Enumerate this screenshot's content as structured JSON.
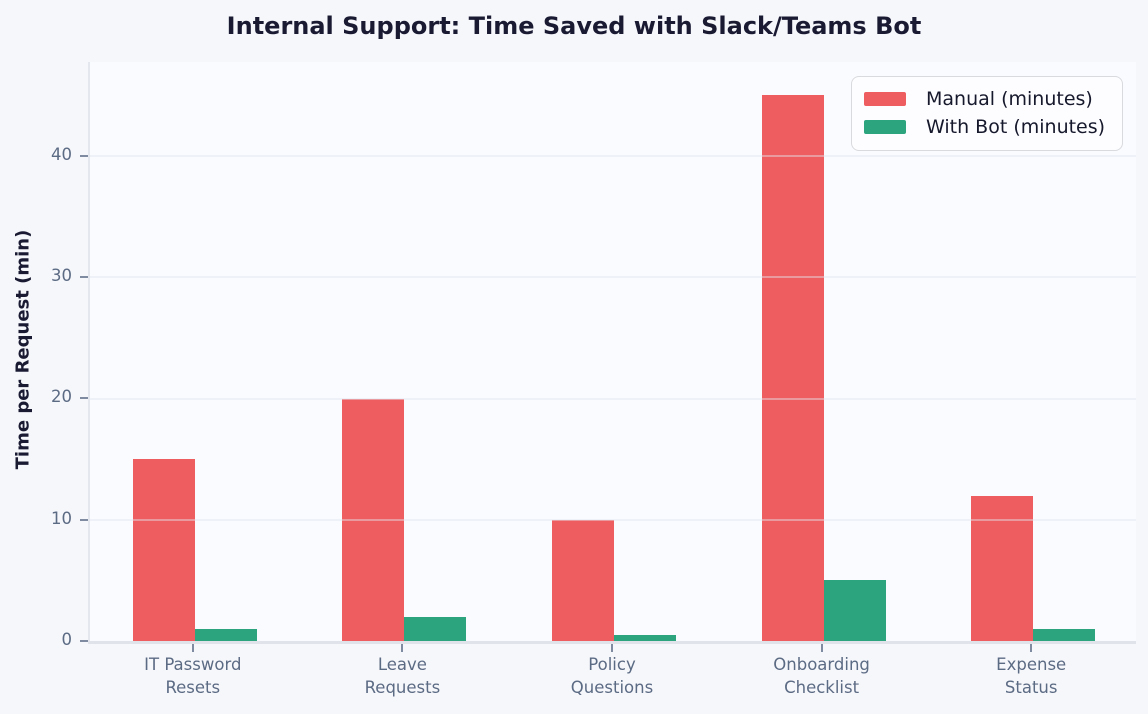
{
  "chart_data": {
    "type": "bar",
    "title": "Internal Support: Time Saved with Slack/Teams Bot",
    "ylabel": "Time per Request (min)",
    "xlabel": "",
    "categories": [
      "IT Password\nResets",
      "Leave\nRequests",
      "Policy\nQuestions",
      "Onboarding\nChecklist",
      "Expense\nStatus"
    ],
    "series": [
      {
        "name": "Manual (minutes)",
        "color": "#ee5d60",
        "values": [
          15,
          20,
          10,
          45,
          12
        ]
      },
      {
        "name": "With Bot (minutes)",
        "color": "#2ca57e",
        "values": [
          1,
          2,
          0.5,
          5,
          1
        ]
      }
    ],
    "yticks": [
      0,
      10,
      20,
      30,
      40
    ],
    "ylim": [
      0,
      47.75
    ],
    "grid": true,
    "grid_axis": "y",
    "legend_position": "upper right",
    "background_color": "#f6f7fb",
    "plot_background_color": "#fafbff",
    "tick_label_color": "#5c6b84",
    "text_color": "#1a1b33"
  }
}
